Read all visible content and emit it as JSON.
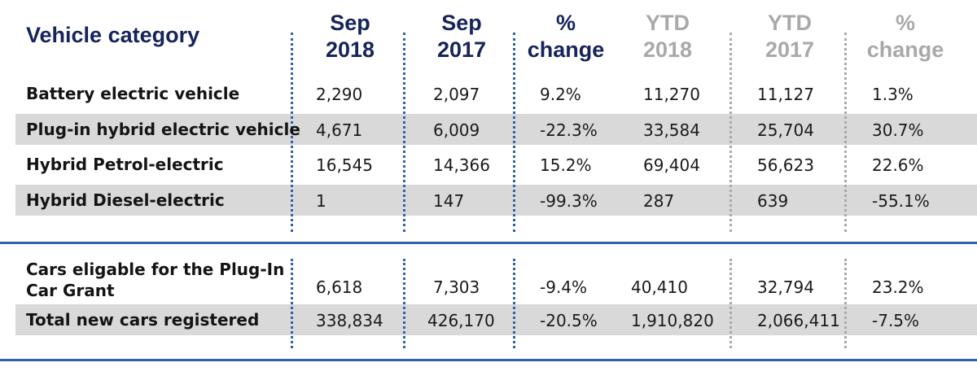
{
  "header": {
    "category": "Vehicle category",
    "sep2018": [
      "Sep",
      "2018"
    ],
    "sep2017": [
      "Sep",
      "2017"
    ],
    "change": [
      "%",
      "change"
    ],
    "ytd2018": [
      "YTD",
      "2018"
    ],
    "ytd2017": [
      "YTD",
      "2017"
    ],
    "ytdchange": [
      "%",
      "change"
    ]
  },
  "rows": [
    {
      "label": "Battery electric vehicle",
      "values": [
        "2,290",
        "2,097",
        "9.2%",
        "11,270",
        "11,127",
        "1.3%"
      ]
    },
    {
      "label": "Plug-in hybrid electric vehicle",
      "values": [
        "4,671",
        "6,009",
        "-22.3%",
        "33,584",
        "25,704",
        "30.7%"
      ]
    },
    {
      "label": "Hybrid Petrol-electric",
      "values": [
        "16,545",
        "14,366",
        "15.2%",
        "69,404",
        "56,623",
        "22.6%"
      ]
    },
    {
      "label": "Hybrid Diesel-electric",
      "values": [
        "1",
        "147",
        "-99.3%",
        "287",
        "639",
        "-55.1%"
      ]
    }
  ],
  "summary_rows": [
    {
      "label_lines": [
        "Cars eligable for the Plug-In",
        "Car Grant"
      ],
      "values": [
        "6,618",
        "7,303",
        "-9.4%",
        "40,410",
        "32,794",
        "23.2%"
      ]
    },
    {
      "label": "Total new cars registered",
      "values": [
        "338,834",
        "426,170",
        "-20.5%",
        "1,910,820",
        "2,066,411",
        "-7.5%"
      ]
    }
  ],
  "colors": {
    "navy": "#15245a",
    "blue_rule": "#2f63a8",
    "grey_header": "#a9a9a9",
    "row_shade": "#d9d9d9"
  }
}
